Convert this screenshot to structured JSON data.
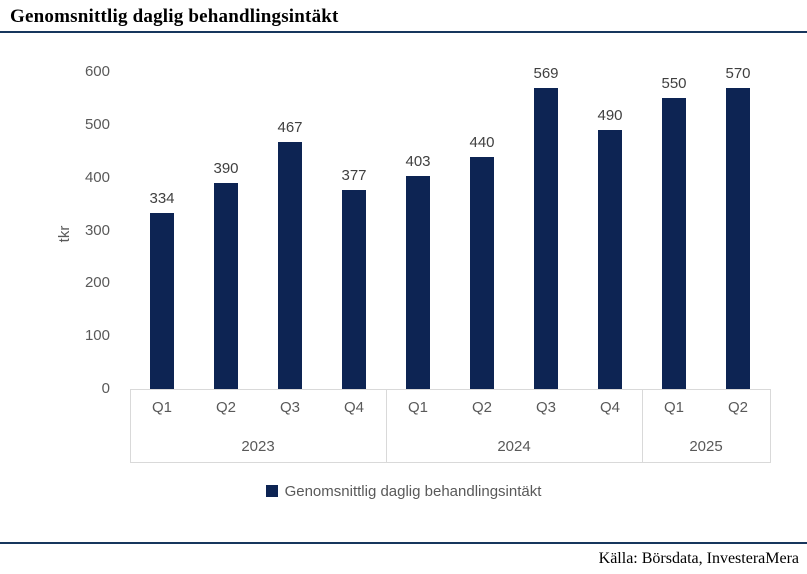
{
  "page": {
    "title": "Genomsnittlig daglig behandlingsintäkt",
    "source": "Källa: Börsdata, InvesteraMera"
  },
  "colors": {
    "bar": "#0d2453",
    "accent_line": "#17365d",
    "axis_text": "#595959",
    "data_label": "#404040",
    "border": "#d9d9d9"
  },
  "chart_data": {
    "type": "bar",
    "title": "Genomsnittlig daglig behandlingsintäkt",
    "xlabel": "",
    "ylabel": "tkr",
    "ylim": [
      0,
      600
    ],
    "yticks": [
      0,
      100,
      200,
      300,
      400,
      500,
      600
    ],
    "categories": [
      "Q1",
      "Q2",
      "Q3",
      "Q4",
      "Q1",
      "Q2",
      "Q3",
      "Q4",
      "Q1",
      "Q2"
    ],
    "groups": [
      {
        "label": "2023",
        "span": 4
      },
      {
        "label": "2024",
        "span": 4
      },
      {
        "label": "2025",
        "span": 2
      }
    ],
    "series": [
      {
        "name": "Genomsnittlig daglig behandlingsintäkt",
        "values": [
          334,
          390,
          467,
          377,
          403,
          440,
          569,
          490,
          550,
          570
        ]
      }
    ],
    "grid": false,
    "legend_position": "bottom",
    "bar_color": "#0d2453"
  }
}
